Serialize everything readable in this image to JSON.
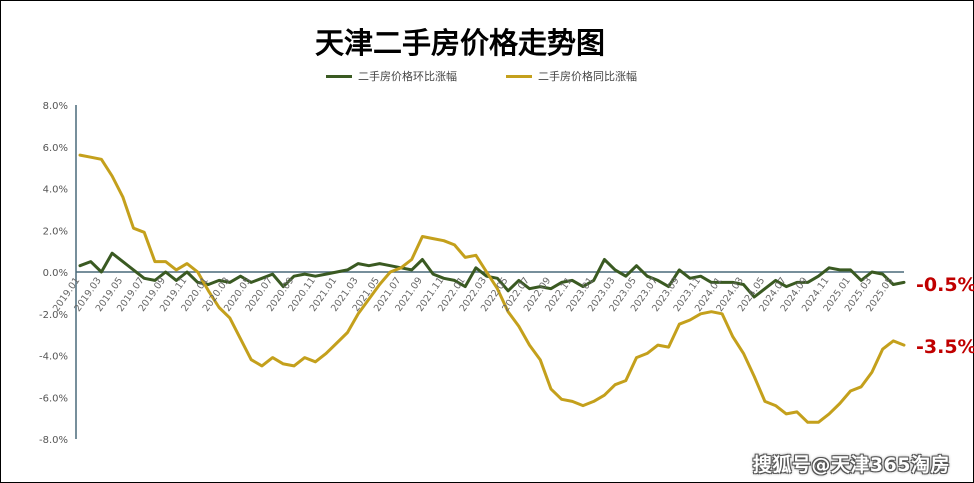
{
  "chart_data": {
    "type": "line",
    "title": "天津二手房价格走势图",
    "ylim": [
      -8.0,
      8.0
    ],
    "yticks": [
      "8.0%",
      "6.0%",
      "4.0%",
      "2.0%",
      "0.0%",
      "-2.0%",
      "-4.0%",
      "-6.0%",
      "-8.0%"
    ],
    "ytick_values": [
      8,
      6,
      4,
      2,
      0,
      -2,
      -4,
      -6,
      -8
    ],
    "x": [
      "2019.01",
      "2019.02",
      "2019.03",
      "2019.04",
      "2019.05",
      "2019.06",
      "2019.07",
      "2019.08",
      "2019.09",
      "2019.10",
      "2019.11",
      "2019.12",
      "2020.01",
      "2020.02",
      "2020.03",
      "2020.04",
      "2020.05",
      "2020.06",
      "2020.07",
      "2020.08",
      "2020.09",
      "2020.10",
      "2020.11",
      "2020.12",
      "2021.01",
      "2021.02",
      "2021.03",
      "2021.04",
      "2021.05",
      "2021.06",
      "2021.07",
      "2021.08",
      "2021.09",
      "2021.10",
      "2021.11",
      "2021.12",
      "2022.01",
      "2022.02",
      "2022.03",
      "2022.04",
      "2022.05",
      "2022.06",
      "2022.07",
      "2022.08",
      "2022.09",
      "2022.10",
      "2022.11",
      "2022.12",
      "2023.01",
      "2023.02",
      "2023.03",
      "2023.04",
      "2023.05",
      "2023.06",
      "2023.07",
      "2023.08",
      "2023.09",
      "2023.10",
      "2023.11",
      "2023.12",
      "2024.01",
      "2024.02",
      "2024.03",
      "2024.04",
      "2024.05",
      "2024.06",
      "2024.07",
      "2024.08",
      "2024.09",
      "2024.10",
      "2024.11",
      "2024.12",
      "2025.01",
      "2025.02",
      "2025.03",
      "2025.04",
      "2025.05",
      "2025.06"
    ],
    "xtick_labels": [
      "2019.01",
      "2019.03",
      "2019.05",
      "2019.07",
      "2019.09",
      "2019.11",
      "2020.01",
      "2020.03",
      "2020.05",
      "2020.07",
      "2020.09",
      "2020.11",
      "2021.01",
      "2021.03",
      "2021.05",
      "2021.07",
      "2021.09",
      "2021.11",
      "2022.01",
      "2022.03",
      "2022.05",
      "2022.07",
      "2022.09",
      "2022.11",
      "2023.01",
      "2023.03",
      "2023.05",
      "2023.07",
      "2023.09",
      "2023.11",
      "2024.01",
      "2024.03",
      "2024.05",
      "2024.07",
      "2024.09",
      "2024.11",
      "2025.01",
      "2025.03",
      "2025.05"
    ],
    "series": [
      {
        "name": "二手房价格环比涨幅",
        "color": "#3a5a22",
        "values": [
          0.3,
          0.5,
          0.0,
          0.9,
          0.5,
          0.1,
          -0.3,
          -0.4,
          0.0,
          -0.4,
          0.0,
          -0.5,
          -0.6,
          -0.4,
          -0.5,
          -0.2,
          -0.5,
          -0.3,
          -0.1,
          -0.7,
          -0.2,
          -0.1,
          -0.2,
          -0.1,
          0.0,
          0.1,
          0.4,
          0.3,
          0.4,
          0.3,
          0.2,
          0.1,
          0.6,
          -0.1,
          -0.3,
          -0.4,
          -0.7,
          0.2,
          -0.2,
          -0.3,
          -0.9,
          -0.4,
          -0.8,
          -0.7,
          -0.8,
          -0.5,
          -0.4,
          -0.7,
          -0.4,
          0.6,
          0.1,
          -0.2,
          0.3,
          -0.2,
          -0.4,
          -0.7,
          0.1,
          -0.3,
          -0.2,
          -0.5,
          -0.5,
          -0.5,
          -0.6,
          -1.2,
          -0.8,
          -0.4,
          -0.7,
          -0.5,
          -0.5,
          -0.2,
          0.2,
          0.1,
          0.1,
          -0.4,
          0.0,
          -0.1,
          -0.6,
          -0.5
        ]
      },
      {
        "name": "二手房价格同比涨幅",
        "color": "#c4a01c",
        "values": [
          5.6,
          5.5,
          5.4,
          4.6,
          3.6,
          2.1,
          1.9,
          0.5,
          0.5,
          0.1,
          0.4,
          0.0,
          -0.9,
          -1.7,
          -2.2,
          -3.2,
          -4.2,
          -4.5,
          -4.1,
          -4.4,
          -4.5,
          -4.1,
          -4.3,
          -3.9,
          -3.4,
          -2.9,
          -2.0,
          -1.3,
          -0.6,
          0.0,
          0.2,
          0.6,
          1.7,
          1.6,
          1.5,
          1.3,
          0.7,
          0.8,
          0.0,
          -0.8,
          -1.9,
          -2.6,
          -3.5,
          -4.2,
          -5.6,
          -6.1,
          -6.2,
          -6.4,
          -6.2,
          -5.9,
          -5.4,
          -5.2,
          -4.1,
          -3.9,
          -3.5,
          -3.6,
          -2.5,
          -2.3,
          -2.0,
          -1.9,
          -2.0,
          -3.1,
          -3.9,
          -5.0,
          -6.2,
          -6.4,
          -6.8,
          -6.7,
          -7.2,
          -7.2,
          -6.8,
          -6.3,
          -5.7,
          -5.5,
          -4.8,
          -3.7,
          -3.3,
          -3.5
        ]
      }
    ],
    "end_labels": [
      {
        "text": "-0.5%",
        "series": 0
      },
      {
        "text": "-3.5%",
        "series": 1
      }
    ],
    "axis_color": "#4a6a7a",
    "grid": false,
    "legend_position": "top-center"
  },
  "watermark": "搜狐号@天津365淘房"
}
